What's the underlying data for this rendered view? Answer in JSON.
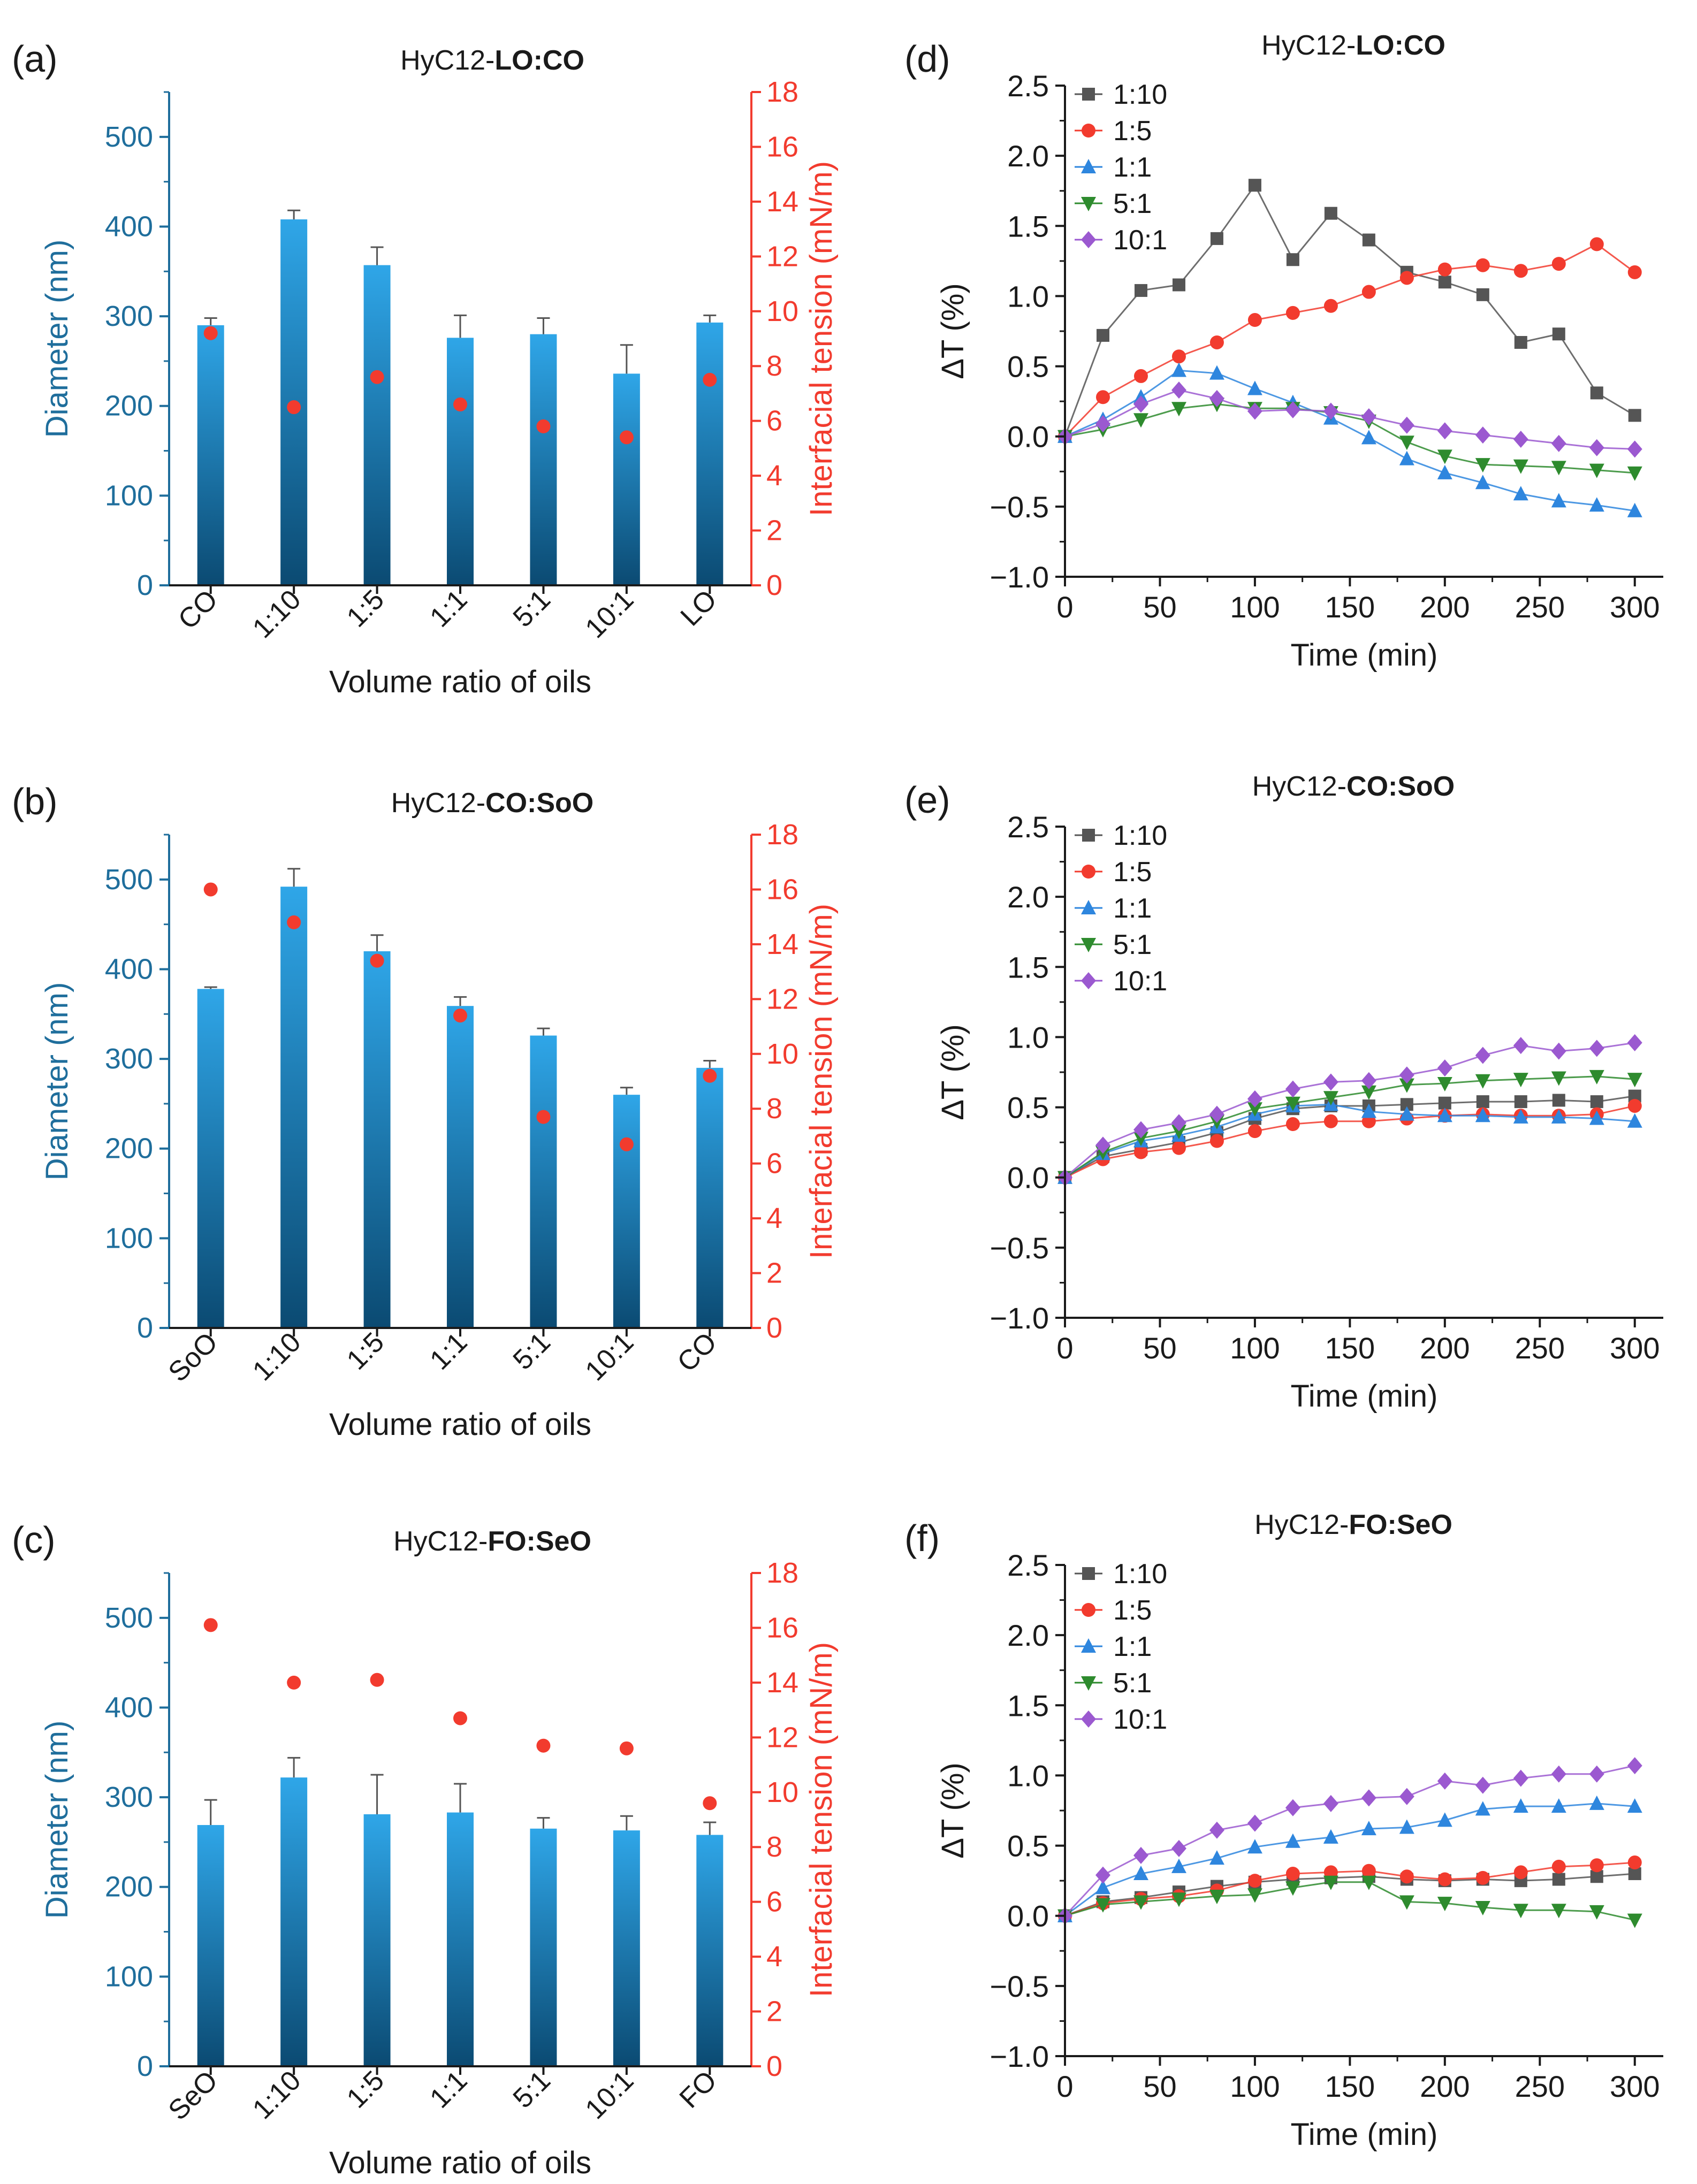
{
  "figure": {
    "colors": {
      "diameter_axis": "#1F6E9C",
      "tension_axis": "#F23B2E",
      "bar_top": "#2FA6E8",
      "bar_bottom": "#0B4A72",
      "text": "#1a1a1a"
    }
  },
  "chart_data": [
    {
      "panel_label": "(a)",
      "type": "bar",
      "title_prefix": "HyC12-",
      "title_bold": "LO:CO",
      "categories": [
        "CO",
        "1:10",
        "1:5",
        "1:1",
        "5:1",
        "10:1",
        "LO"
      ],
      "xlabel": "Volume ratio of oils",
      "ylabel": "Diameter (nm)",
      "ylabel_right": "Interfacial tension (mN/m)",
      "ylim": [
        0,
        550
      ],
      "ylim_right": [
        0,
        18
      ],
      "yticks": [
        0,
        100,
        200,
        300,
        400,
        500
      ],
      "yticks_right": [
        0,
        2,
        4,
        6,
        8,
        10,
        12,
        14,
        16,
        18
      ],
      "series": [
        {
          "name": "Diameter",
          "axis": "left",
          "kind": "bar",
          "values": [
            290,
            408,
            357,
            276,
            280,
            236,
            293
          ],
          "errors": [
            8,
            10,
            20,
            25,
            18,
            32,
            8
          ]
        },
        {
          "name": "Interfacial tension",
          "axis": "right",
          "kind": "scatter",
          "values": [
            9.2,
            6.5,
            7.6,
            6.6,
            5.8,
            5.4,
            7.5
          ]
        }
      ]
    },
    {
      "panel_label": "(b)",
      "type": "bar",
      "title_prefix": "HyC12-",
      "title_bold": "CO:SoO",
      "categories": [
        "SoO",
        "1:10",
        "1:5",
        "1:1",
        "5:1",
        "10:1",
        "CO"
      ],
      "xlabel": "Volume ratio of oils",
      "ylabel": "Diameter (nm)",
      "ylabel_right": "Interfacial tension (mN/m)",
      "ylim": [
        0,
        550
      ],
      "ylim_right": [
        0,
        18
      ],
      "yticks": [
        0,
        100,
        200,
        300,
        400,
        500
      ],
      "yticks_right": [
        0,
        2,
        4,
        6,
        8,
        10,
        12,
        14,
        16,
        18
      ],
      "series": [
        {
          "name": "Diameter",
          "axis": "left",
          "kind": "bar",
          "values": [
            378,
            492,
            420,
            359,
            326,
            260,
            290
          ],
          "errors": [
            2,
            20,
            18,
            10,
            8,
            8,
            8
          ]
        },
        {
          "name": "Interfacial tension",
          "axis": "right",
          "kind": "scatter",
          "values": [
            16.0,
            14.8,
            13.4,
            11.4,
            7.7,
            6.7,
            9.2
          ]
        }
      ]
    },
    {
      "panel_label": "(c)",
      "type": "bar",
      "title_prefix": "HyC12-",
      "title_bold": "FO:SeO",
      "categories": [
        "SeO",
        "1:10",
        "1:5",
        "1:1",
        "5:1",
        "10:1",
        "FO"
      ],
      "xlabel": "Volume ratio of oils",
      "ylabel": "Diameter (nm)",
      "ylabel_right": "Interfacial tension (mN/m)",
      "ylim": [
        0,
        550
      ],
      "ylim_right": [
        0,
        18
      ],
      "yticks": [
        0,
        100,
        200,
        300,
        400,
        500
      ],
      "yticks_right": [
        0,
        2,
        4,
        6,
        8,
        10,
        12,
        14,
        16,
        18
      ],
      "series": [
        {
          "name": "Diameter",
          "axis": "left",
          "kind": "bar",
          "values": [
            269,
            322,
            281,
            283,
            265,
            263,
            258
          ],
          "errors": [
            28,
            22,
            44,
            32,
            12,
            16,
            14
          ]
        },
        {
          "name": "Interfacial tension",
          "axis": "right",
          "kind": "scatter",
          "values": [
            16.1,
            14.0,
            14.1,
            12.7,
            11.7,
            11.6,
            9.6
          ]
        }
      ]
    },
    {
      "panel_label": "(d)",
      "type": "line",
      "title_prefix": "HyC12-",
      "title_bold": "LO:CO",
      "xlabel": "Time (min)",
      "ylabel": "ΔT (%)",
      "xlim": [
        0,
        315
      ],
      "ylim": [
        -1.0,
        2.5
      ],
      "xticks": [
        0,
        50,
        100,
        150,
        200,
        250,
        300
      ],
      "yticks": [
        -1.0,
        -0.5,
        0.0,
        0.5,
        1.0,
        1.5,
        2.0,
        2.5
      ],
      "ytick_labels": [
        "−1.0",
        "−0.5",
        "0.0",
        "0.5",
        "1.0",
        "1.5",
        "2.0",
        "2.5"
      ],
      "x": [
        0,
        20,
        40,
        60,
        80,
        100,
        120,
        140,
        160,
        180,
        200,
        220,
        240,
        260,
        280,
        300
      ],
      "series": [
        {
          "name": "1:10",
          "color": "#555555",
          "marker": "square",
          "values": [
            0.0,
            0.72,
            1.04,
            1.08,
            1.41,
            1.79,
            1.26,
            1.59,
            1.4,
            1.17,
            1.1,
            1.01,
            0.67,
            0.73,
            0.31,
            0.15
          ]
        },
        {
          "name": "1:5",
          "color": "#F23B2E",
          "marker": "circle",
          "values": [
            0.0,
            0.28,
            0.43,
            0.57,
            0.67,
            0.83,
            0.88,
            0.93,
            1.03,
            1.13,
            1.19,
            1.22,
            1.18,
            1.23,
            1.37,
            1.17
          ]
        },
        {
          "name": "1:1",
          "color": "#2E86DE",
          "marker": "triangle-up",
          "values": [
            0.0,
            0.12,
            0.28,
            0.47,
            0.45,
            0.34,
            0.24,
            0.13,
            -0.01,
            -0.16,
            -0.26,
            -0.33,
            -0.41,
            -0.46,
            -0.49,
            -0.53
          ]
        },
        {
          "name": "5:1",
          "color": "#2E8B2E",
          "marker": "triangle-down",
          "values": [
            0.0,
            0.05,
            0.12,
            0.2,
            0.23,
            0.2,
            0.2,
            0.17,
            0.11,
            -0.04,
            -0.14,
            -0.2,
            -0.21,
            -0.22,
            -0.24,
            -0.26
          ]
        },
        {
          "name": "10:1",
          "color": "#9B59D0",
          "marker": "diamond",
          "values": [
            0.0,
            0.09,
            0.23,
            0.33,
            0.27,
            0.18,
            0.19,
            0.18,
            0.14,
            0.08,
            0.04,
            0.01,
            -0.02,
            -0.05,
            -0.08,
            -0.09
          ]
        }
      ]
    },
    {
      "panel_label": "(e)",
      "type": "line",
      "title_prefix": "HyC12-",
      "title_bold": "CO:SoO",
      "xlabel": "Time (min)",
      "ylabel": "ΔT (%)",
      "xlim": [
        0,
        315
      ],
      "ylim": [
        -1.0,
        2.5
      ],
      "xticks": [
        0,
        50,
        100,
        150,
        200,
        250,
        300
      ],
      "yticks": [
        -1.0,
        -0.5,
        0.0,
        0.5,
        1.0,
        1.5,
        2.0,
        2.5
      ],
      "ytick_labels": [
        "−1.0",
        "−0.5",
        "0.0",
        "0.5",
        "1.0",
        "1.5",
        "2.0",
        "2.5"
      ],
      "x": [
        0,
        20,
        40,
        60,
        80,
        100,
        120,
        140,
        160,
        180,
        200,
        220,
        240,
        260,
        280,
        300
      ],
      "series": [
        {
          "name": "1:10",
          "color": "#555555",
          "marker": "square",
          "values": [
            0.0,
            0.15,
            0.2,
            0.25,
            0.32,
            0.42,
            0.49,
            0.51,
            0.51,
            0.52,
            0.53,
            0.54,
            0.54,
            0.55,
            0.54,
            0.58
          ]
        },
        {
          "name": "1:5",
          "color": "#F23B2E",
          "marker": "circle",
          "values": [
            0.0,
            0.13,
            0.18,
            0.21,
            0.26,
            0.33,
            0.38,
            0.4,
            0.4,
            0.42,
            0.44,
            0.45,
            0.44,
            0.44,
            0.45,
            0.51
          ]
        },
        {
          "name": "1:1",
          "color": "#2E86DE",
          "marker": "triangle-up",
          "values": [
            0.0,
            0.17,
            0.26,
            0.3,
            0.36,
            0.45,
            0.51,
            0.52,
            0.47,
            0.45,
            0.44,
            0.44,
            0.43,
            0.43,
            0.42,
            0.4
          ]
        },
        {
          "name": "5:1",
          "color": "#2E8B2E",
          "marker": "triangle-down",
          "values": [
            0.0,
            0.18,
            0.28,
            0.33,
            0.4,
            0.49,
            0.53,
            0.57,
            0.61,
            0.66,
            0.67,
            0.69,
            0.7,
            0.71,
            0.72,
            0.7
          ]
        },
        {
          "name": "10:1",
          "color": "#9B59D0",
          "marker": "diamond",
          "values": [
            0.0,
            0.23,
            0.34,
            0.39,
            0.45,
            0.56,
            0.63,
            0.68,
            0.69,
            0.73,
            0.78,
            0.87,
            0.94,
            0.9,
            0.92,
            0.96
          ]
        }
      ]
    },
    {
      "panel_label": "(f)",
      "type": "line",
      "title_prefix": "HyC12-",
      "title_bold": "FO:SeO",
      "xlabel": "Time (min)",
      "ylabel": "ΔT (%)",
      "xlim": [
        0,
        315
      ],
      "ylim": [
        -1.0,
        2.5
      ],
      "xticks": [
        0,
        50,
        100,
        150,
        200,
        250,
        300
      ],
      "yticks": [
        -1.0,
        -0.5,
        0.0,
        0.5,
        1.0,
        1.5,
        2.0,
        2.5
      ],
      "ytick_labels": [
        "−1.0",
        "−0.5",
        "0.0",
        "0.5",
        "1.0",
        "1.5",
        "2.0",
        "2.5"
      ],
      "x": [
        0,
        20,
        40,
        60,
        80,
        100,
        120,
        140,
        160,
        180,
        200,
        220,
        240,
        260,
        280,
        300
      ],
      "series": [
        {
          "name": "1:10",
          "color": "#555555",
          "marker": "square",
          "values": [
            0.0,
            0.1,
            0.13,
            0.17,
            0.21,
            0.24,
            0.26,
            0.27,
            0.28,
            0.26,
            0.25,
            0.26,
            0.25,
            0.26,
            0.28,
            0.3
          ]
        },
        {
          "name": "1:5",
          "color": "#F23B2E",
          "marker": "circle",
          "values": [
            0.0,
            0.09,
            0.12,
            0.14,
            0.18,
            0.25,
            0.3,
            0.31,
            0.32,
            0.28,
            0.26,
            0.27,
            0.31,
            0.35,
            0.36,
            0.38
          ]
        },
        {
          "name": "1:1",
          "color": "#2E86DE",
          "marker": "triangle-up",
          "values": [
            0.0,
            0.2,
            0.3,
            0.35,
            0.41,
            0.49,
            0.53,
            0.56,
            0.62,
            0.63,
            0.68,
            0.76,
            0.78,
            0.78,
            0.8,
            0.78
          ]
        },
        {
          "name": "5:1",
          "color": "#2E8B2E",
          "marker": "triangle-down",
          "values": [
            0.0,
            0.08,
            0.1,
            0.12,
            0.14,
            0.15,
            0.2,
            0.24,
            0.24,
            0.1,
            0.09,
            0.06,
            0.04,
            0.04,
            0.03,
            -0.03
          ]
        },
        {
          "name": "10:1",
          "color": "#9B59D0",
          "marker": "diamond",
          "values": [
            0.0,
            0.29,
            0.43,
            0.48,
            0.61,
            0.66,
            0.77,
            0.8,
            0.84,
            0.85,
            0.96,
            0.93,
            0.98,
            1.01,
            1.01,
            1.07
          ]
        }
      ]
    }
  ]
}
